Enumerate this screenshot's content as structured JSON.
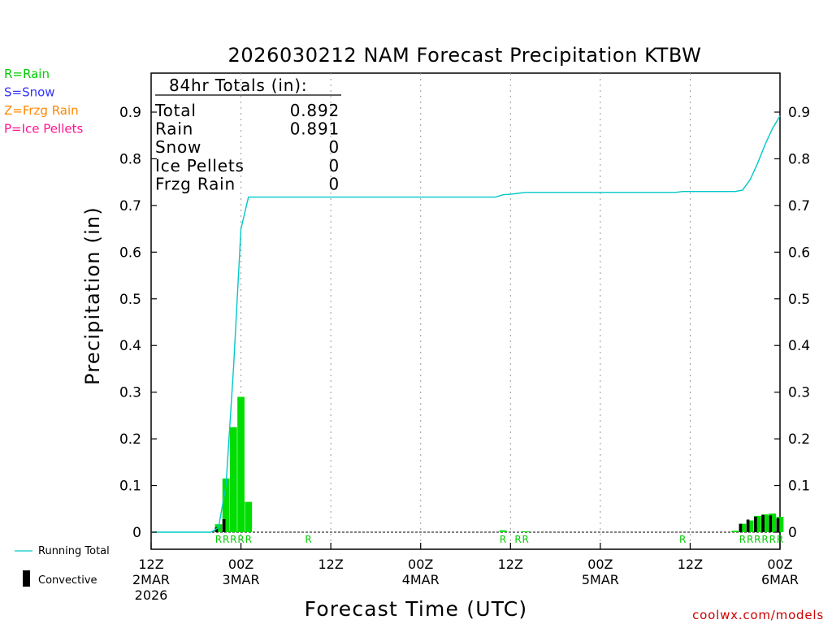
{
  "chart_data": {
    "type": "bar",
    "title": "2026030212 NAM Forecast Precipitation KTBW",
    "xlabel": "Forecast Time (UTC)",
    "ylabel": "Precipitation (in)",
    "ylim": [
      0,
      0.98
    ],
    "xlim_hours": [
      0,
      84
    ],
    "yticks": [
      "0",
      "0.1",
      "0.2",
      "0.3",
      "0.4",
      "0.5",
      "0.6",
      "0.7",
      "0.8",
      "0.9"
    ],
    "xticks": [
      {
        "hour": 0,
        "l1": "12Z",
        "l2": "2MAR",
        "l3": "2026"
      },
      {
        "hour": 12,
        "l1": "00Z",
        "l2": "3MAR",
        "l3": ""
      },
      {
        "hour": 24,
        "l1": "12Z",
        "l2": "",
        "l3": ""
      },
      {
        "hour": 36,
        "l1": "00Z",
        "l2": "4MAR",
        "l3": ""
      },
      {
        "hour": 48,
        "l1": "12Z",
        "l2": "",
        "l3": ""
      },
      {
        "hour": 60,
        "l1": "00Z",
        "l2": "5MAR",
        "l3": ""
      },
      {
        "hour": 72,
        "l1": "12Z",
        "l2": "",
        "l3": ""
      },
      {
        "hour": 84,
        "l1": "00Z",
        "l2": "6MAR",
        "l3": ""
      }
    ],
    "grid": "dotted-vertical",
    "precip_type_legend": [
      {
        "text": "R=Rain",
        "color": "#00cc00"
      },
      {
        "text": "S=Snow",
        "color": "#3333ff"
      },
      {
        "text": "Z=Frzg Rain",
        "color": "#ff8800"
      },
      {
        "text": "P=Ice Pellets",
        "color": "#ff1493"
      }
    ],
    "series": [
      {
        "name": "Running Total",
        "type": "line",
        "color": "#00c8c8",
        "points": [
          [
            0,
            0
          ],
          [
            8,
            0
          ],
          [
            9,
            0.01
          ],
          [
            10,
            0.1
          ],
          [
            11,
            0.35
          ],
          [
            12,
            0.65
          ],
          [
            13,
            0.718
          ],
          [
            24,
            0.718
          ],
          [
            36,
            0.718
          ],
          [
            46,
            0.718
          ],
          [
            47,
            0.723
          ],
          [
            48,
            0.724
          ],
          [
            50,
            0.728
          ],
          [
            60,
            0.728
          ],
          [
            70,
            0.728
          ],
          [
            71,
            0.73
          ],
          [
            78,
            0.73
          ],
          [
            79,
            0.733
          ],
          [
            80,
            0.755
          ],
          [
            81,
            0.79
          ],
          [
            82,
            0.83
          ],
          [
            83,
            0.865
          ],
          [
            84,
            0.892
          ]
        ]
      },
      {
        "name": "Rain",
        "type": "bar",
        "color": "#00dd00",
        "bars": [
          [
            9,
            0.017
          ],
          [
            10,
            0.115
          ],
          [
            11,
            0.225
          ],
          [
            12,
            0.29
          ],
          [
            13,
            0.065
          ],
          [
            47,
            0.004
          ],
          [
            50,
            0.002
          ],
          [
            78,
            0.003
          ],
          [
            79,
            0.018
          ],
          [
            80,
            0.025
          ],
          [
            81,
            0.035
          ],
          [
            82,
            0.038
          ],
          [
            83,
            0.04
          ],
          [
            84,
            0.033
          ]
        ]
      },
      {
        "name": "Convective",
        "type": "bar",
        "color": "#000000",
        "bars": [
          [
            9,
            0.01
          ],
          [
            10,
            0.028
          ],
          [
            79,
            0.018
          ],
          [
            80,
            0.027
          ],
          [
            81,
            0.033
          ],
          [
            82,
            0.037
          ],
          [
            83,
            0.036
          ],
          [
            84,
            0.03
          ]
        ]
      }
    ],
    "ptype_markers": [
      {
        "hour": 9,
        "text": "R"
      },
      {
        "hour": 10,
        "text": "R"
      },
      {
        "hour": 11,
        "text": "R"
      },
      {
        "hour": 12,
        "text": "R"
      },
      {
        "hour": 13,
        "text": "R"
      },
      {
        "hour": 21,
        "text": "R"
      },
      {
        "hour": 47,
        "text": "R"
      },
      {
        "hour": 49,
        "text": "R"
      },
      {
        "hour": 50,
        "text": "R"
      },
      {
        "hour": 71,
        "text": "R"
      },
      {
        "hour": 79,
        "text": "R"
      },
      {
        "hour": 80,
        "text": "R"
      },
      {
        "hour": 81,
        "text": "R"
      },
      {
        "hour": 82,
        "text": "R"
      },
      {
        "hour": 83,
        "text": "R"
      },
      {
        "hour": 84,
        "text": "R"
      }
    ]
  },
  "totals_box": {
    "heading": "84hr Totals (in):",
    "rows": [
      {
        "label": "Total",
        "value": "0.892"
      },
      {
        "label": "Rain",
        "value": "0.891"
      },
      {
        "label": "Snow",
        "value": "0"
      },
      {
        "label": "Ice Pellets",
        "value": "0"
      },
      {
        "label": "Frzg Rain",
        "value": "0"
      }
    ]
  },
  "legend": {
    "running_total_label": "Running Total",
    "convective_label": "Convective"
  },
  "credit": "coolwx.com/models"
}
